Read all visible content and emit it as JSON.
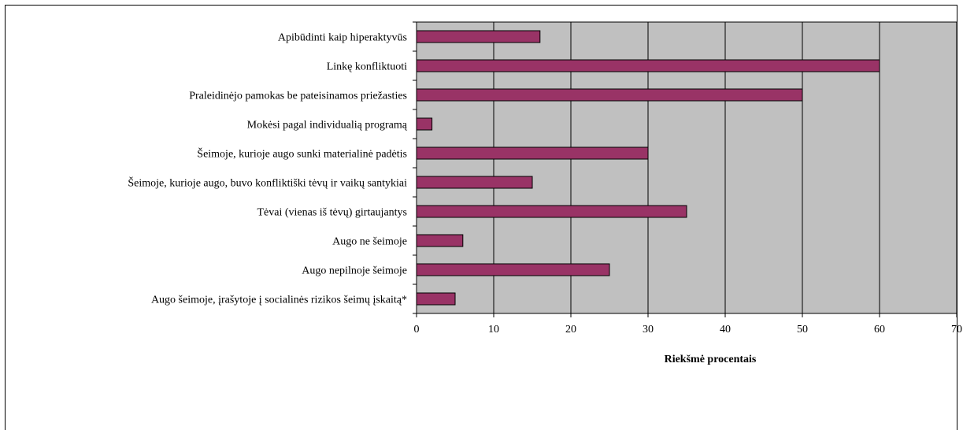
{
  "chart_data": {
    "type": "bar",
    "orientation": "horizontal",
    "categories": [
      "Apibūdinti kaip hiperaktyvūs",
      "Linkę konfliktuoti",
      "Praleidinėjo pamokas be pateisinamos priežasties",
      "Mokėsi pagal individualią programą",
      "Šeimoje, kurioje augo sunki materialinė padėtis",
      "Šeimoje, kurioje augo, buvo konfliktiški tėvų ir vaikų santykiai",
      "Tėvai (vienas iš tėvų) girtaujantys",
      "Augo ne šeimoje",
      "Augo nepilnoje šeimoje",
      "Augo šeimoje, įrašytoje į socialinės rizikos šeimų įskaitą*"
    ],
    "values": [
      16,
      60,
      50,
      2,
      30,
      15,
      35,
      6,
      25,
      5
    ],
    "xlabel": "Riekšmė procentais",
    "ylabel": "",
    "title": "",
    "xlim": [
      0,
      70
    ],
    "xticks": [
      "0",
      "10",
      "20",
      "30",
      "40",
      "50",
      "60",
      "70"
    ],
    "grid": true,
    "legend": "none",
    "colors": {
      "bar": "#993366",
      "plot_background": "#c0c0c0",
      "gridline": "#000000"
    }
  }
}
